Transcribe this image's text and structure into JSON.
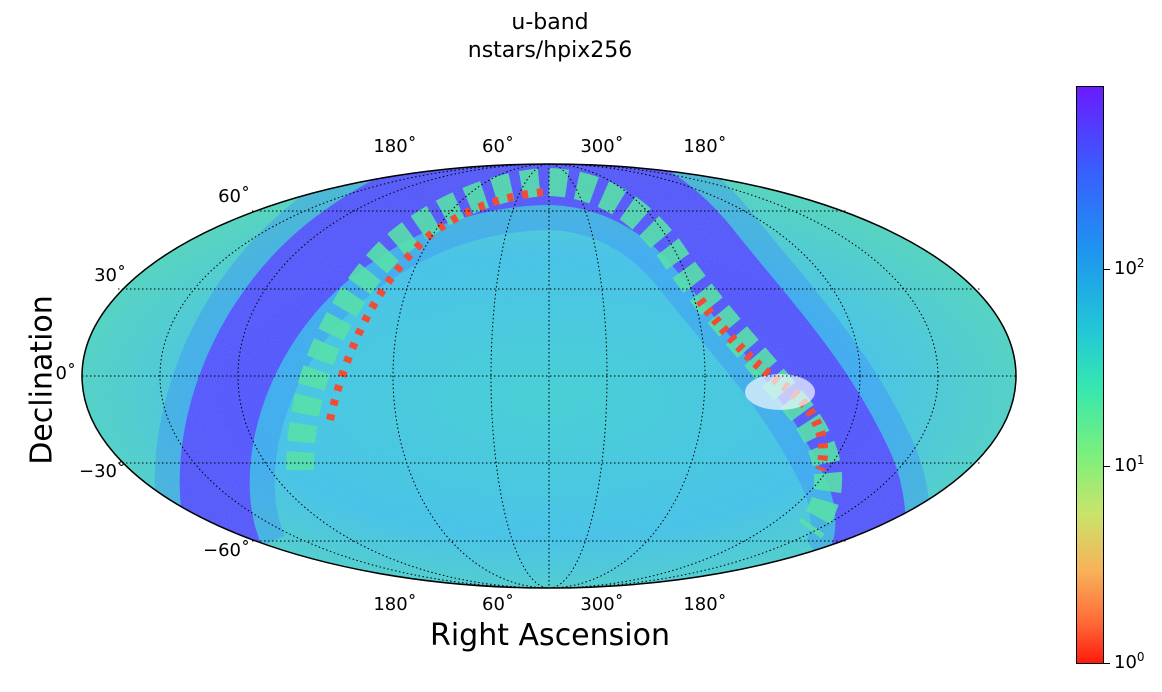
{
  "title": [
    "u-band",
    "nstars/hpix256"
  ],
  "axes": {
    "xlabel": "Right Ascension",
    "ylabel": "Declination"
  },
  "ra_labels": [
    "180˚",
    "60˚",
    "300˚",
    "180˚"
  ],
  "dec_labels": [
    "60˚",
    "30˚",
    "0˚",
    "−30˚",
    "−60˚"
  ],
  "colorbar": {
    "scale": "log",
    "ticks": [
      {
        "base": "10",
        "exp": "2"
      },
      {
        "base": "10",
        "exp": "1"
      },
      {
        "base": "10",
        "exp": "0"
      }
    ],
    "colormap": "rainbow_r",
    "low_color": "#ff1a0e",
    "high_color": "#6a1cff"
  },
  "map": {
    "projection": "Mollweide",
    "background_color": "#5fe39a",
    "band_color": "#6a1cff",
    "grid_style": "dotted"
  }
}
